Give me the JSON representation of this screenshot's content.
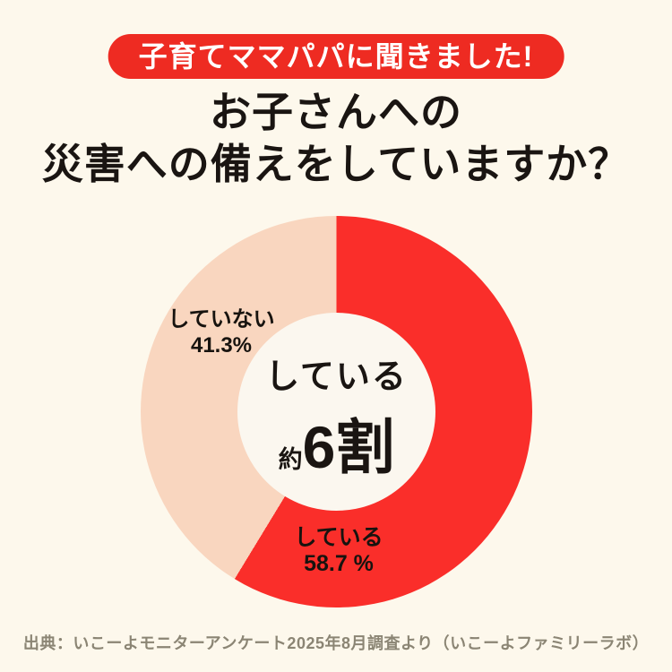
{
  "badge": {
    "label": "子育てママパパに聞きました!",
    "bg_color": "#EE2B22",
    "text_color": "#FFFFFF"
  },
  "title": {
    "line1": "お子さんへの",
    "line2": "災害への備えをしていますか？"
  },
  "chart_data": {
    "type": "pie",
    "donut": true,
    "title": "お子さんへの災害への備えをしていますか？",
    "categories": [
      "している",
      "していない"
    ],
    "values": [
      58.7,
      41.3
    ],
    "colors": [
      "#FA2E2A",
      "#F9D6BF"
    ],
    "start_angle_deg": 0,
    "direction": "clockwise",
    "background_color": "#FDF8EC",
    "hole_color": "#FBF7EF",
    "center_label": {
      "text": "している",
      "prefix": "約",
      "value": "6割"
    },
    "slice_labels": [
      {
        "name": "している",
        "value_text": "58.7 %"
      },
      {
        "name": "していない",
        "value_text": "41.3%"
      }
    ]
  },
  "footer": {
    "source": "出典：いこーよモニターアンケート2025年8月調査より（いこーよファミリーラボ）"
  }
}
